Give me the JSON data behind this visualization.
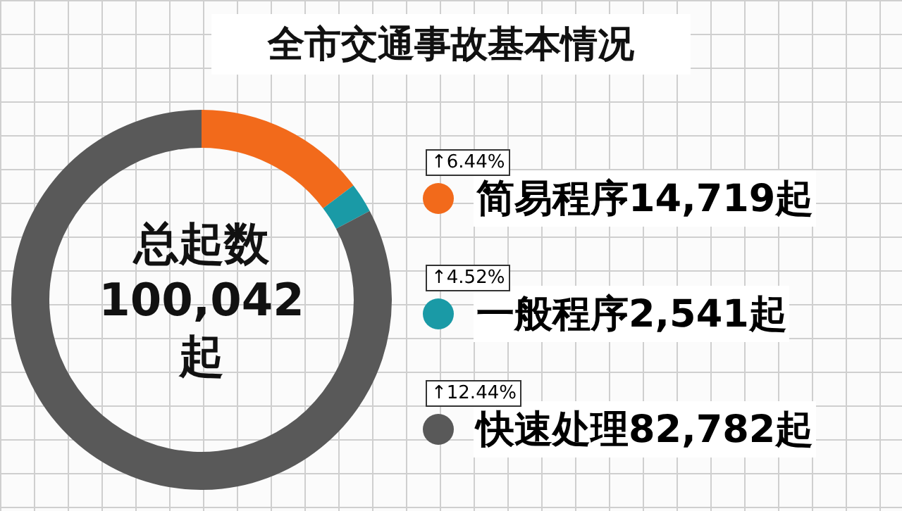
{
  "chart_data": {
    "type": "donut",
    "title": "全市交通事故基本情况",
    "categories": [
      "简易程序",
      "一般程序",
      "快速处理"
    ],
    "values": [
      14719,
      2541,
      82782
    ],
    "value_labels": [
      "14,719起",
      "2,541起",
      "82,782起"
    ],
    "colors": [
      "#f26a1b",
      "#1a9aa6",
      "#595959"
    ],
    "legend": "right",
    "annotations": [
      "总起数\n100,042\n起",
      "↑6.44%",
      "↑4.52%",
      "↑12.44%"
    ]
  }
}
